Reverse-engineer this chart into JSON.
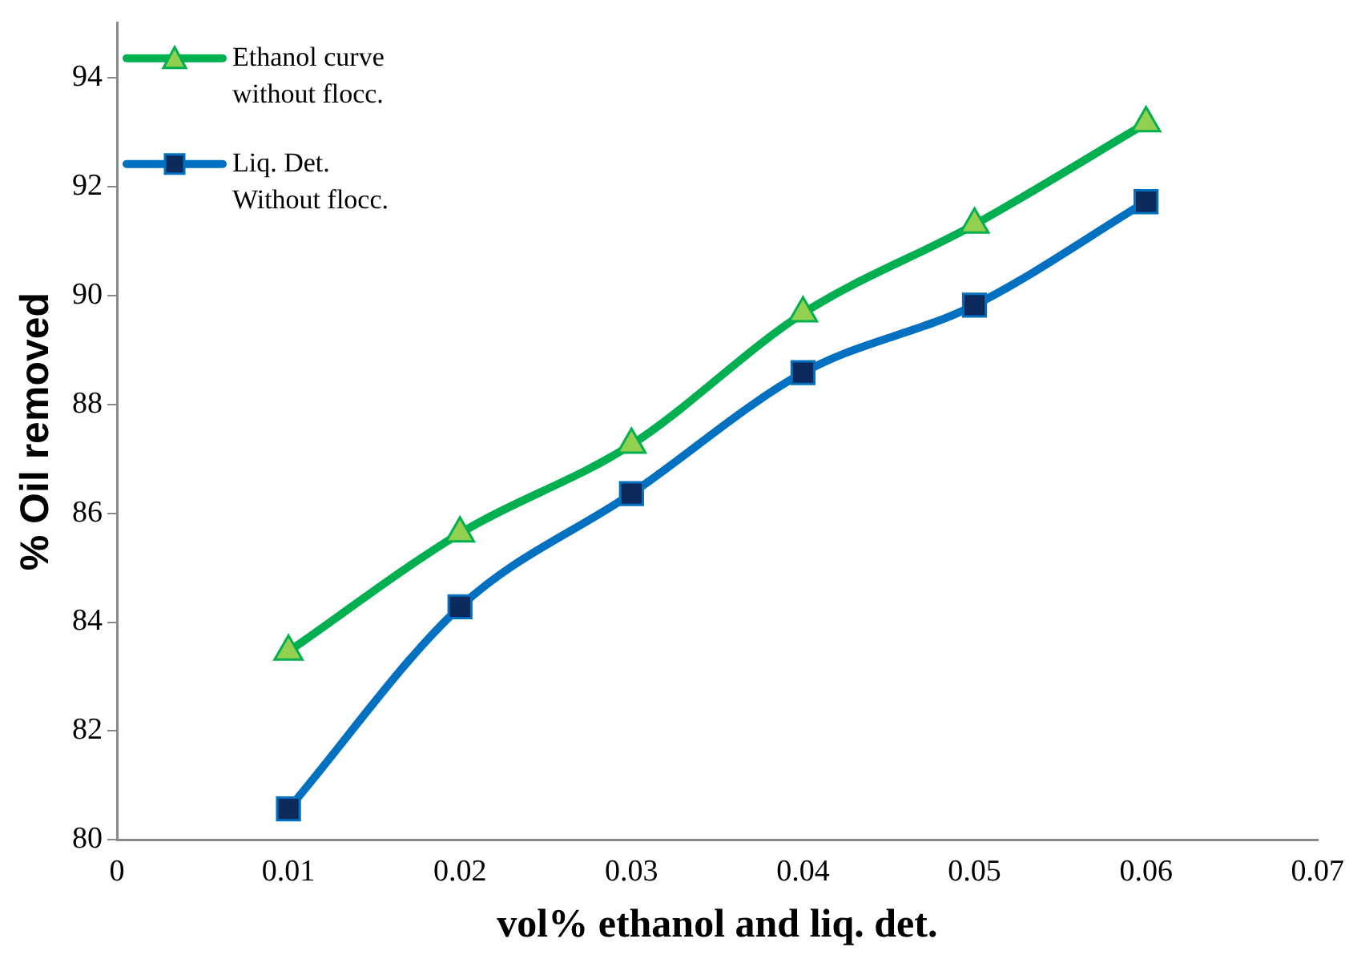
{
  "chart_data": {
    "type": "line",
    "xlabel": "vol% ethanol and liq. det.",
    "ylabel": "% Oil removed",
    "x": [
      0.01,
      0.02,
      0.03,
      0.04,
      0.05,
      0.06
    ],
    "series": [
      {
        "name": "Ethanol curve without flocc.",
        "color": "#00b050",
        "marker": "triangle",
        "values": [
          83.46,
          85.63,
          87.26,
          89.67,
          91.3,
          93.16
        ]
      },
      {
        "name": "Liq. Det. Without flocc.",
        "color": "#0070c0",
        "marker": "square",
        "values": [
          80.57,
          84.28,
          86.36,
          88.58,
          89.82,
          91.72
        ]
      }
    ],
    "xlim": [
      0,
      0.07
    ],
    "xticks": [
      0,
      0.01,
      0.02,
      0.03,
      0.04,
      0.05,
      0.06,
      0.07
    ],
    "ylim": [
      80,
      95
    ],
    "yticks": [
      80,
      82,
      84,
      86,
      88,
      90,
      92,
      94
    ],
    "grid": false,
    "legend": "top left"
  }
}
